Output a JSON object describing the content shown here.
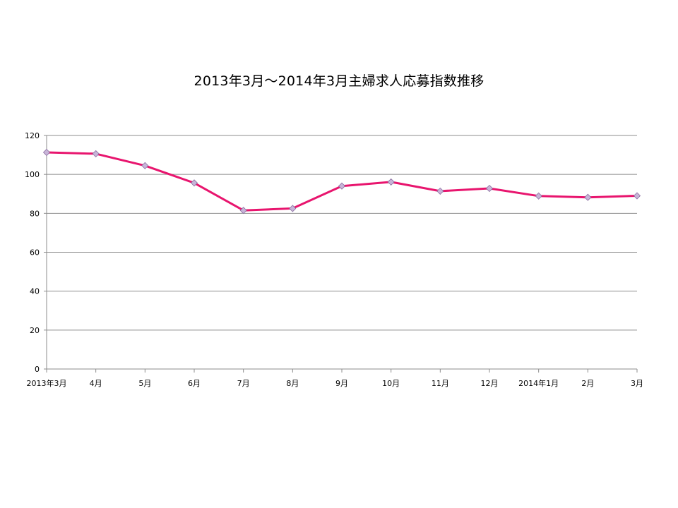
{
  "chart_data": {
    "type": "line",
    "title": "2013年3月～2014年3月主婦求人応募指数推移",
    "xlabel": "",
    "ylabel": "",
    "categories": [
      "2013年3月",
      "4月",
      "5月",
      "6月",
      "7月",
      "8月",
      "9月",
      "10月",
      "11月",
      "12月",
      "2014年1月",
      "2月",
      "3月"
    ],
    "series": [
      {
        "values": [
          111.3,
          110.6,
          104.5,
          95.6,
          81.5,
          82.5,
          94.0,
          96.1,
          91.4,
          92.8,
          88.9,
          88.2,
          89.0
        ],
        "color": "#e8156e",
        "marker_fill": "#c8b4d8",
        "marker": "diamond"
      }
    ],
    "ylim": [
      0,
      120
    ],
    "yticks": [
      0,
      20,
      40,
      60,
      80,
      100,
      120
    ],
    "grid": true,
    "legend": "none"
  }
}
